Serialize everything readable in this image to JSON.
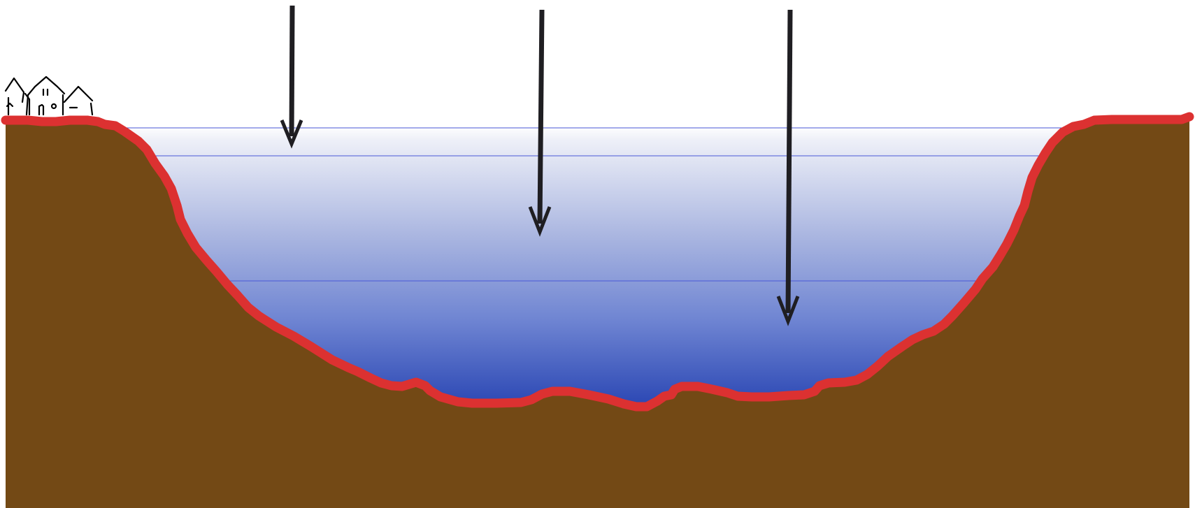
{
  "colors": {
    "background": "#ffffff",
    "ground": "#734915",
    "bed_outline": "#dc3131",
    "water_surface": "#eef0f8",
    "water_deep": "#2c48b4",
    "depth_lines": "#4a58d8",
    "arrows": "#1f1e22",
    "houses_stroke": "#000000"
  },
  "icons": {
    "houses": "houses-icon",
    "arrow": "down-arrow-icon"
  },
  "depth_levels": 3,
  "arrows_count": 3
}
